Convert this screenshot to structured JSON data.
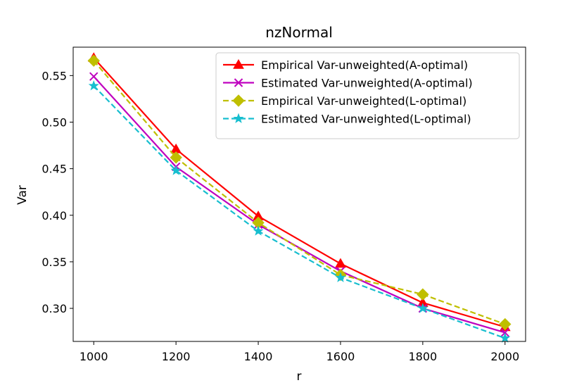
{
  "chart_data": {
    "type": "line",
    "title": "nzNormal",
    "xlabel": "r",
    "ylabel": "Var",
    "x": [
      1000,
      1200,
      1400,
      1600,
      1800,
      2000
    ],
    "xlim": [
      950,
      2050
    ],
    "ylim": [
      0.2645,
      0.5805
    ],
    "xticks": [
      1000,
      1200,
      1400,
      1600,
      1800,
      2000
    ],
    "xtick_labels": [
      "1000",
      "1200",
      "1400",
      "1600",
      "1800",
      "2000"
    ],
    "yticks": [
      0.3,
      0.35,
      0.4,
      0.45,
      0.5,
      0.55
    ],
    "ytick_labels": [
      "0.30",
      "0.35",
      "0.40",
      "0.45",
      "0.50",
      "0.55"
    ],
    "grid": false,
    "legend_position": "top-right",
    "series": [
      {
        "name": "Empirical Var-unweighted(A-optimal)",
        "values": [
          0.569,
          0.471,
          0.399,
          0.348,
          0.306,
          0.28
        ],
        "color": "#ff0000",
        "line_style": "solid",
        "marker": "triangle"
      },
      {
        "name": "Estimated Var-unweighted(A-optimal)",
        "values": [
          0.549,
          0.452,
          0.39,
          0.34,
          0.3,
          0.274
        ],
        "color": "#bf00bf",
        "line_style": "solid",
        "marker": "x"
      },
      {
        "name": "Empirical Var-unweighted(L-optimal)",
        "values": [
          0.566,
          0.462,
          0.392,
          0.336,
          0.315,
          0.283
        ],
        "color": "#bfbf00",
        "line_style": "dashed",
        "marker": "diamond"
      },
      {
        "name": "Estimated Var-unweighted(L-optimal)",
        "values": [
          0.539,
          0.448,
          0.383,
          0.333,
          0.3,
          0.268
        ],
        "color": "#17becf",
        "line_style": "dashed",
        "marker": "star"
      }
    ]
  }
}
